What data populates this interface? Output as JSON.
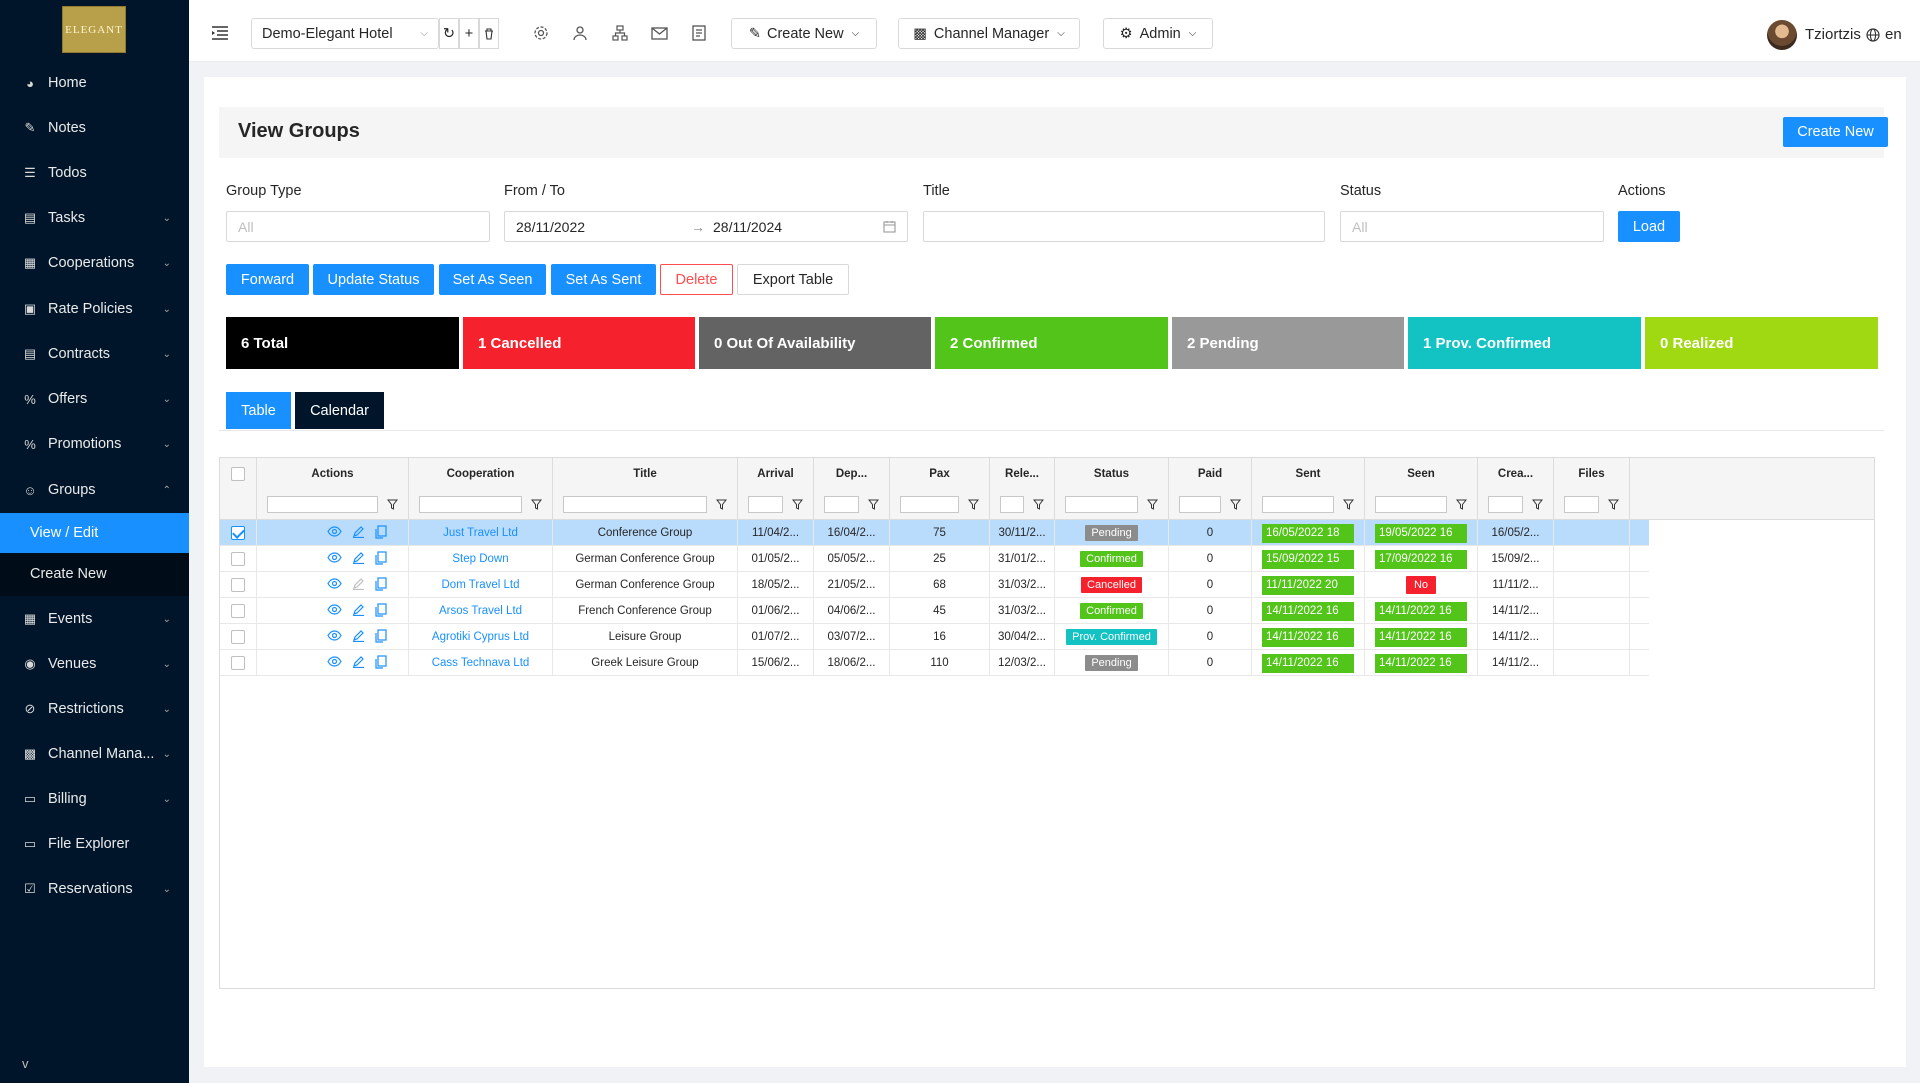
{
  "sidebar": {
    "logo_text": "ELEGANT",
    "items": [
      {
        "label": "Home",
        "icon": "dashboard-icon",
        "chevron": false
      },
      {
        "label": "Notes",
        "icon": "edit-icon",
        "chevron": false
      },
      {
        "label": "Todos",
        "icon": "list-icon",
        "chevron": false
      },
      {
        "label": "Tasks",
        "icon": "task-icon",
        "chevron": true
      },
      {
        "label": "Cooperations",
        "icon": "cooperation-icon",
        "chevron": true
      },
      {
        "label": "Rate Policies",
        "icon": "policy-icon",
        "chevron": true
      },
      {
        "label": "Contracts",
        "icon": "contract-icon",
        "chevron": true
      },
      {
        "label": "Offers",
        "icon": "percent-icon",
        "chevron": true
      },
      {
        "label": "Promotions",
        "icon": "percent-icon",
        "chevron": true
      },
      {
        "label": "Groups",
        "icon": "group-icon",
        "chevron": true,
        "expanded": true
      },
      {
        "label": "Events",
        "icon": "calendar-icon",
        "chevron": true
      },
      {
        "label": "Venues",
        "icon": "location-icon",
        "chevron": true
      },
      {
        "label": "Restrictions",
        "icon": "stop-icon",
        "chevron": true
      },
      {
        "label": "Channel Mana...",
        "icon": "channel-icon",
        "chevron": true
      },
      {
        "label": "Billing",
        "icon": "billing-icon",
        "chevron": true
      },
      {
        "label": "File Explorer",
        "icon": "folder-icon",
        "chevron": false
      },
      {
        "label": "Reservations",
        "icon": "reservation-icon",
        "chevron": true
      }
    ],
    "sub_items": [
      "View / Edit",
      "Create New"
    ],
    "collapse_label": "v"
  },
  "topbar": {
    "hotel_select": "Demo-Elegant Hotel",
    "create_new": "Create New",
    "channel_manager": "Channel Manager",
    "admin": "Admin",
    "user_name": "Tziortzis",
    "language": "en"
  },
  "page": {
    "title": "View Groups",
    "create_new": "Create New"
  },
  "filters": {
    "group_type_label": "Group Type",
    "group_type_placeholder": "All",
    "from_to_label": "From / To",
    "from_date": "28/11/2022",
    "to_date": "28/11/2024",
    "title_label": "Title",
    "status_label": "Status",
    "status_placeholder": "All",
    "actions_label": "Actions",
    "load_button": "Load"
  },
  "toolbar": {
    "forward": "Forward",
    "update_status": "Update Status",
    "set_as_seen": "Set As Seen",
    "set_as_sent": "Set As Sent",
    "delete": "Delete",
    "export_table": "Export Table"
  },
  "stats": [
    {
      "label": "6 Total",
      "color": "#000000"
    },
    {
      "label": "1 Cancelled",
      "color": "#f5222d"
    },
    {
      "label": "0 Out Of Availability",
      "color": "#636363"
    },
    {
      "label": "2 Confirmed",
      "color": "#52c41a"
    },
    {
      "label": "2 Pending",
      "color": "#999999"
    },
    {
      "label": "1 Prov. Confirmed",
      "color": "#13c2c2"
    },
    {
      "label": "0 Realized",
      "color": "#a0d911"
    }
  ],
  "view_tabs": {
    "table": "Table",
    "calendar": "Calendar"
  },
  "grid": {
    "columns": [
      "Actions",
      "Cooperation",
      "Title",
      "Arrival",
      "Dep...",
      "Pax",
      "Rele...",
      "Status",
      "Paid",
      "Sent",
      "Seen",
      "Crea...",
      "Files"
    ],
    "rows": [
      {
        "selected": true,
        "cooperation": "Just Travel Ltd",
        "title": "Conference Group",
        "arrival": "11/04/2...",
        "departure": "16/04/2...",
        "pax": "75",
        "release": "30/11/2...",
        "status": "Pending",
        "status_color": "#8c8c8c",
        "paid": "0",
        "sent": "16/05/2022 18",
        "seen": "19/05/2022 16",
        "seen_color": "#52c41a",
        "created": "16/05/2..."
      },
      {
        "selected": false,
        "cooperation": "Step Down",
        "title": "German Conference Group",
        "arrival": "01/05/2...",
        "departure": "05/05/2...",
        "pax": "25",
        "release": "31/01/2...",
        "status": "Confirmed",
        "status_color": "#52c41a",
        "paid": "0",
        "sent": "15/09/2022 15",
        "seen": "17/09/2022 16",
        "seen_color": "#52c41a",
        "created": "15/09/2..."
      },
      {
        "selected": false,
        "cooperation": "Dom Travel Ltd",
        "title": "German Conference Group",
        "arrival": "18/05/2...",
        "departure": "21/05/2...",
        "pax": "68",
        "release": "31/03/2...",
        "status": "Cancelled",
        "status_color": "#f5222d",
        "paid": "0",
        "sent": "11/11/2022 20",
        "seen": "No",
        "seen_color": "#f5222d",
        "created": "11/11/2..."
      },
      {
        "selected": false,
        "cooperation": "Arsos Travel Ltd",
        "title": "French Conference Group",
        "arrival": "01/06/2...",
        "departure": "04/06/2...",
        "pax": "45",
        "release": "31/03/2...",
        "status": "Confirmed",
        "status_color": "#52c41a",
        "paid": "0",
        "sent": "14/11/2022 16",
        "seen": "14/11/2022 16",
        "seen_color": "#52c41a",
        "created": "14/11/2..."
      },
      {
        "selected": false,
        "cooperation": "Agrotiki Cyprus Ltd",
        "title": "Leisure Group",
        "arrival": "01/07/2...",
        "departure": "03/07/2...",
        "pax": "16",
        "release": "30/04/2...",
        "status": "Prov. Confirmed",
        "status_color": "#13c2c2",
        "paid": "0",
        "sent": "14/11/2022 16",
        "seen": "14/11/2022 16",
        "seen_color": "#52c41a",
        "created": "14/11/2..."
      },
      {
        "selected": false,
        "cooperation": "Cass Technava Ltd",
        "title": "Greek Leisure Group",
        "arrival": "15/06/2...",
        "departure": "18/06/2...",
        "pax": "110",
        "release": "12/03/2...",
        "status": "Pending",
        "status_color": "#8c8c8c",
        "paid": "0",
        "sent": "14/11/2022 16",
        "seen": "14/11/2022 16",
        "seen_color": "#52c41a",
        "created": "14/11/2..."
      }
    ]
  }
}
